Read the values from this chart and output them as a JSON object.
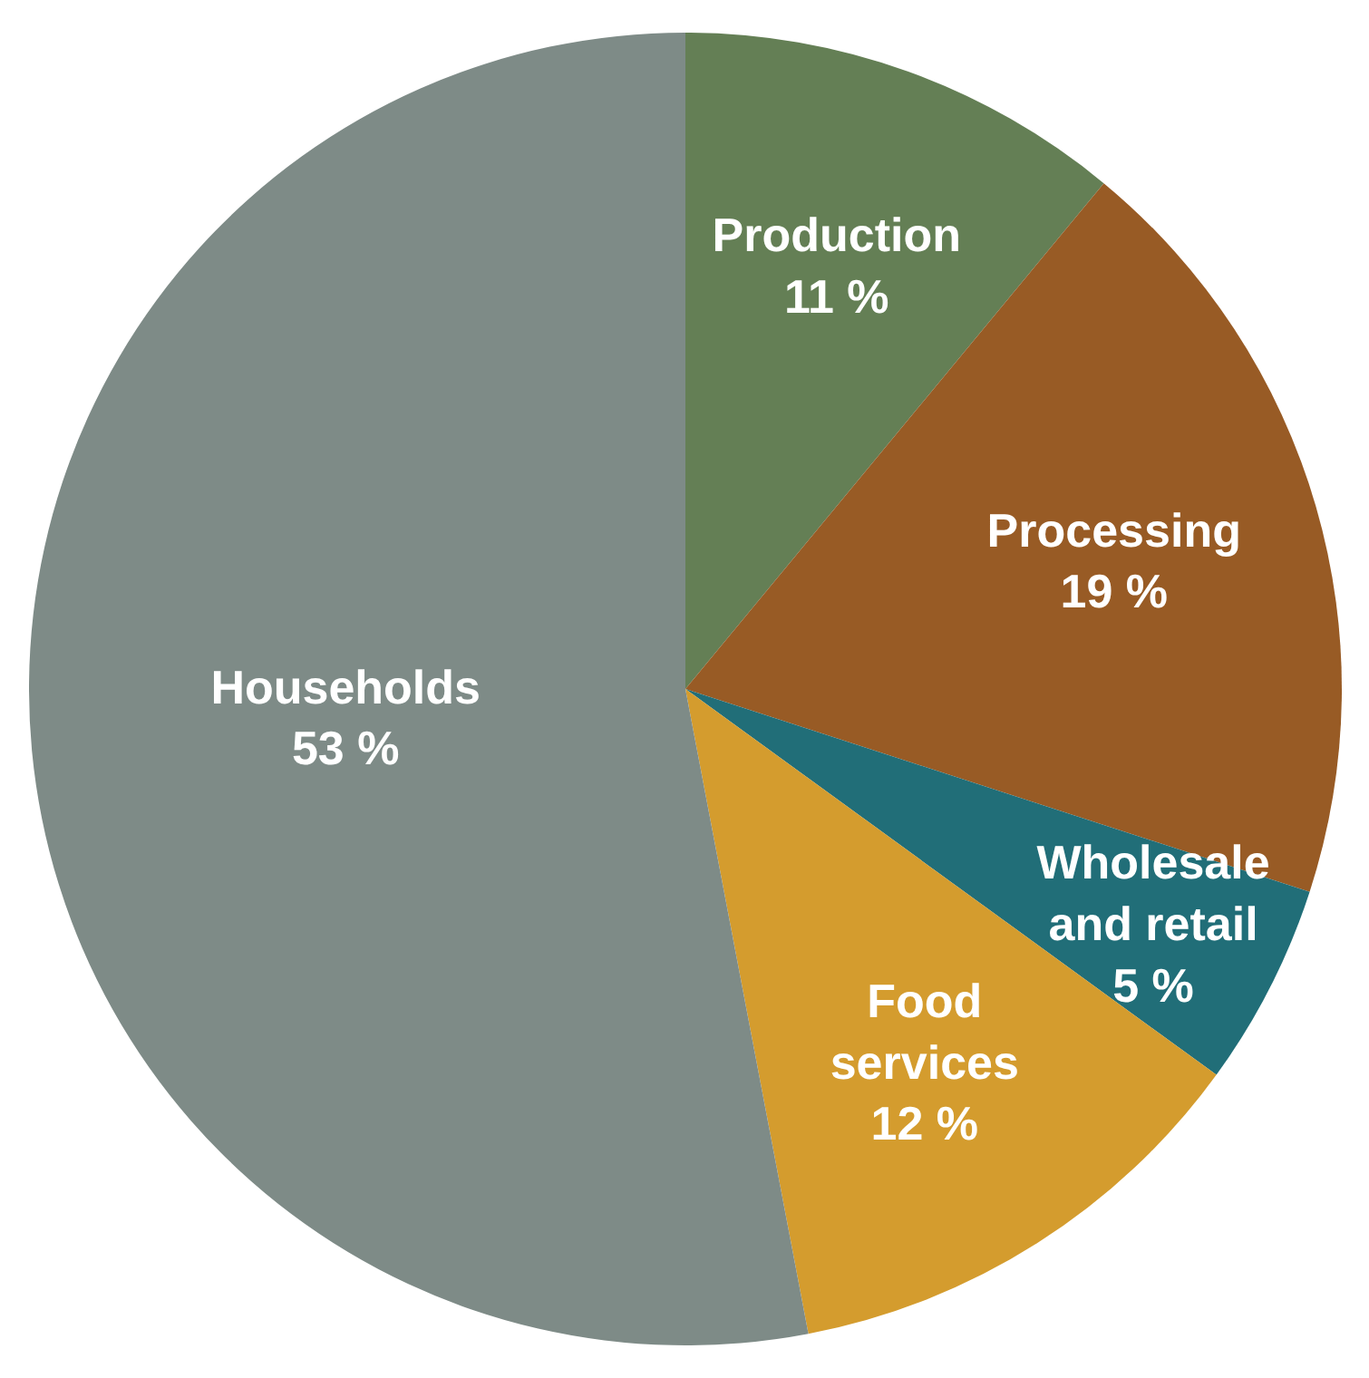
{
  "chart_data": {
    "type": "pie",
    "categories": [
      "Production",
      "Processing",
      "Wholesale and retail",
      "Food services",
      "Households"
    ],
    "values": [
      11,
      19,
      5,
      12,
      53
    ],
    "value_labels": [
      "11 %",
      "19 %",
      "5 %",
      "12 %",
      "53 %"
    ],
    "colors": [
      "#647f55",
      "#985b25",
      "#216e78",
      "#d49c2e",
      "#7e8b87"
    ]
  }
}
